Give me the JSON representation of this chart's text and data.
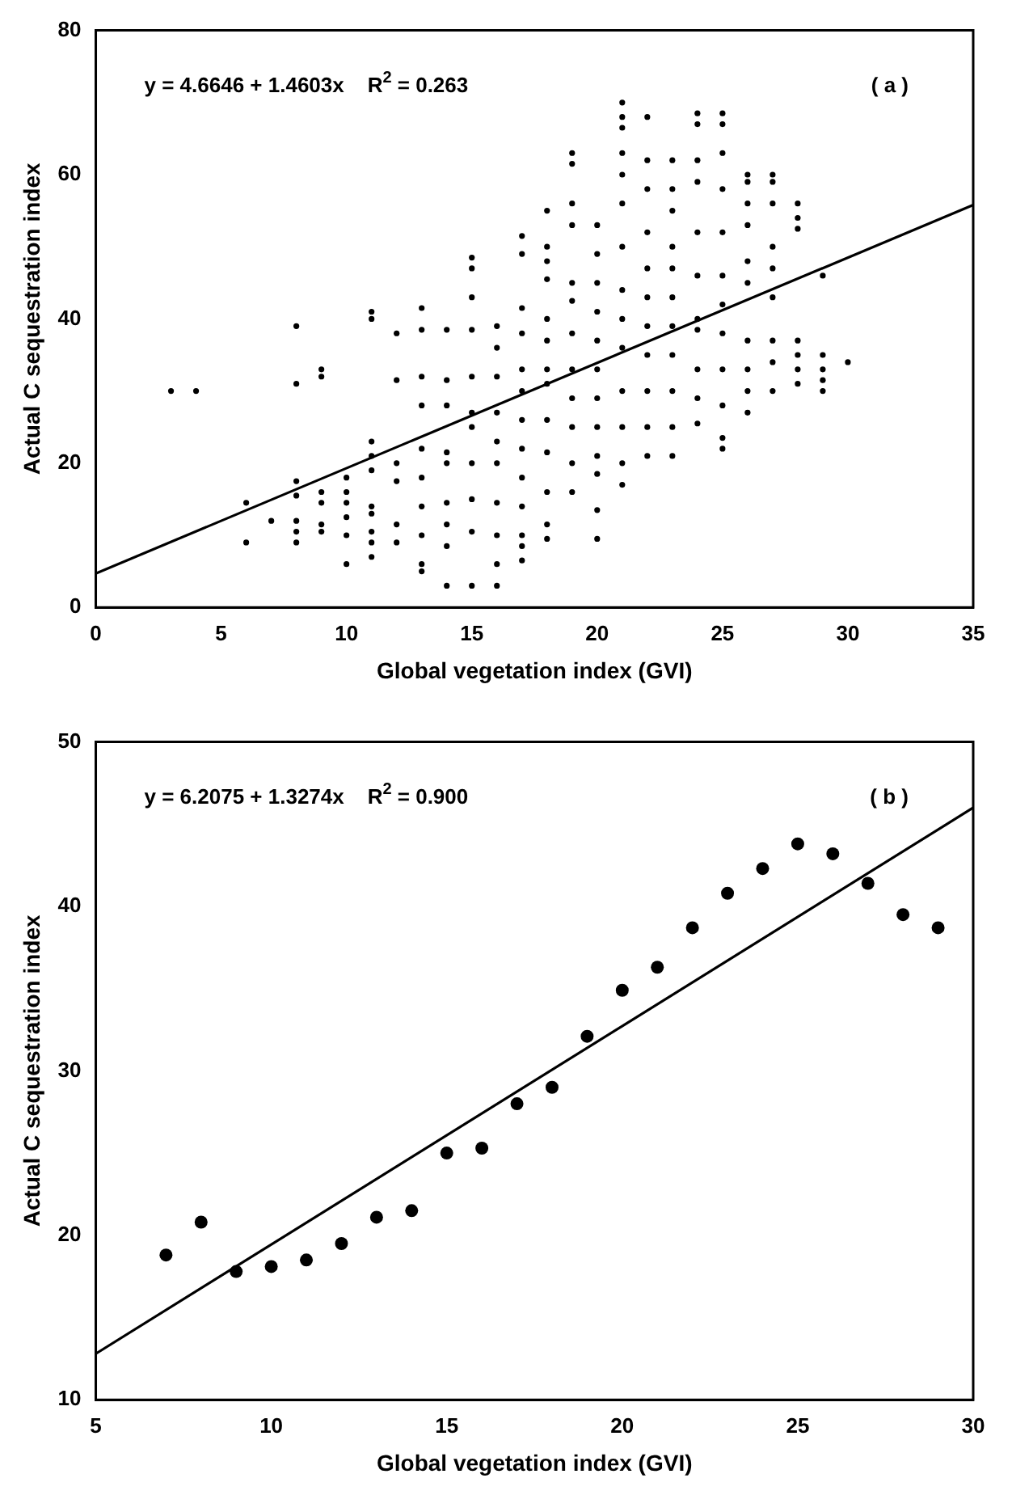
{
  "chart_data": [
    {
      "type": "scatter",
      "xlabel": "Global vegetation index (GVI)",
      "ylabel": "Actual C sequestration index",
      "annotations": [
        "y = 4.6646 + 1.4603x    R$^{2}$ = 0.263",
        "( a )"
      ],
      "xlim": [
        0,
        35
      ],
      "xticks": [
        0,
        5,
        10,
        15,
        20,
        25,
        30,
        35
      ],
      "ylim": [
        0,
        80
      ],
      "yticks": [
        0,
        20,
        40,
        60,
        80
      ],
      "grid": false,
      "legend": false,
      "marker": "circle",
      "series": [
        {
          "color": "#000000",
          "x": [
            3,
            4,
            6,
            6,
            7,
            8,
            8,
            8,
            8,
            8,
            8,
            8,
            9,
            9,
            9,
            9,
            9,
            9,
            10,
            10,
            10,
            10,
            10,
            10,
            11,
            11,
            11,
            11,
            11,
            11,
            11,
            11,
            11,
            11,
            12,
            12,
            12,
            12,
            12,
            12,
            13,
            13,
            13,
            13,
            13,
            13,
            13,
            13,
            13,
            13,
            14,
            14,
            14,
            14,
            14,
            14,
            14,
            14,
            14,
            15,
            15,
            15,
            15,
            15,
            15,
            15,
            15,
            15,
            15,
            15,
            16,
            16,
            16,
            16,
            16,
            16,
            16,
            16,
            16,
            16,
            17,
            17,
            17,
            17,
            17,
            17,
            17,
            17,
            17,
            17,
            17,
            17,
            17,
            18,
            18,
            18,
            18,
            18,
            18,
            18,
            18,
            18,
            18,
            18,
            18,
            18,
            19,
            19,
            19,
            19,
            19,
            19,
            19,
            19,
            19,
            19,
            19,
            19,
            20,
            20,
            20,
            20,
            20,
            20,
            20,
            20,
            20,
            20,
            20,
            20,
            21,
            21,
            21,
            21,
            21,
            21,
            21,
            21,
            21,
            21,
            21,
            21,
            21,
            21,
            22,
            22,
            22,
            22,
            22,
            22,
            22,
            22,
            22,
            22,
            22,
            23,
            23,
            23,
            23,
            23,
            23,
            23,
            23,
            23,
            23,
            23,
            24,
            24,
            24,
            24,
            24,
            24,
            24,
            24,
            24,
            24,
            24,
            25,
            25,
            25,
            25,
            25,
            25,
            25,
            25,
            25,
            25,
            25,
            25,
            26,
            26,
            26,
            26,
            26,
            26,
            26,
            26,
            26,
            26,
            27,
            27,
            27,
            27,
            27,
            27,
            27,
            27,
            27,
            28,
            28,
            28,
            28,
            28,
            28,
            28,
            29,
            29,
            29,
            29,
            29,
            30
          ],
          "values": [
            30,
            30,
            14.5,
            9,
            12,
            39,
            31,
            17.5,
            15.5,
            12,
            10.5,
            9,
            33,
            32,
            16,
            14.5,
            11.5,
            10.5,
            18,
            16,
            14.5,
            12.5,
            10,
            6,
            41,
            40,
            23,
            21,
            19,
            14,
            13,
            10.5,
            9,
            7,
            38,
            31.5,
            20,
            17.5,
            11.5,
            9,
            41.5,
            38.5,
            32,
            28,
            22,
            18,
            14,
            10,
            6,
            5,
            38.5,
            31.5,
            28,
            21.5,
            20,
            14.5,
            11.5,
            8.5,
            3,
            48.5,
            47,
            43,
            38.5,
            32,
            27,
            25,
            20,
            15,
            10.5,
            3,
            39,
            36,
            32,
            27,
            23,
            20,
            14.5,
            10,
            6,
            3,
            51.5,
            49,
            41.5,
            38,
            33,
            30,
            26,
            22,
            18,
            14,
            10,
            8.5,
            6.5,
            55,
            50,
            48,
            45.5,
            40,
            37,
            33,
            31,
            26,
            21.5,
            16,
            11.5,
            9.5,
            63,
            61.5,
            56,
            53,
            45,
            42.5,
            38,
            33,
            29,
            25,
            20,
            16,
            53,
            49,
            45,
            41,
            37,
            33,
            29,
            25,
            21,
            18.5,
            13.5,
            9.5,
            70,
            68,
            66.5,
            63,
            60,
            56,
            50,
            44,
            40,
            36,
            30,
            25,
            20,
            17,
            68,
            62,
            58,
            52,
            47,
            43,
            39,
            35,
            30,
            25,
            21,
            62,
            58,
            55,
            50,
            47,
            43,
            39,
            35,
            30,
            25,
            21,
            68.5,
            67,
            62,
            59,
            52,
            46,
            40,
            38.5,
            33,
            29,
            25.5,
            68.5,
            67,
            63,
            58,
            52,
            46,
            42,
            38,
            33,
            28,
            23.5,
            22,
            60,
            59,
            56,
            53,
            48,
            45,
            37,
            33,
            30,
            27,
            60,
            59,
            56,
            50,
            47,
            43,
            37,
            34,
            30,
            56,
            54,
            52.5,
            37,
            35,
            33,
            31,
            46,
            35,
            33,
            31.5,
            30,
            34
          ]
        },
        {
          "type": "line",
          "color": "#000000",
          "marker": "none",
          "x": [
            0,
            35
          ],
          "values": [
            4.7,
            55.8
          ]
        }
      ]
    },
    {
      "type": "scatter",
      "xlabel": "Global vegetation index (GVI)",
      "ylabel": "Actual C sequestration index",
      "annotations": [
        "y = 6.2075 + 1.3274x    R$^{2}$ = 0.900",
        "( b )"
      ],
      "xlim": [
        5,
        30
      ],
      "xticks": [
        5,
        10,
        15,
        20,
        25,
        30
      ],
      "ylim": [
        10,
        50
      ],
      "yticks": [
        10,
        20,
        30,
        40,
        50
      ],
      "grid": false,
      "legend": false,
      "marker": "circle",
      "series": [
        {
          "color": "#000000",
          "x": [
            7,
            8,
            9,
            10,
            11,
            12,
            13,
            14,
            15,
            16,
            17,
            18,
            19,
            20,
            21,
            22,
            23,
            24,
            25,
            26,
            27,
            28,
            29
          ],
          "values": [
            18.8,
            20.8,
            17.8,
            18.1,
            18.5,
            19.5,
            21.1,
            21.5,
            25.0,
            25.3,
            28.0,
            29.0,
            32.1,
            34.9,
            36.3,
            38.7,
            40.8,
            42.3,
            43.8,
            43.2,
            41.4,
            39.5,
            38.7
          ]
        },
        {
          "type": "line",
          "color": "#000000",
          "marker": "none",
          "x": [
            5,
            30
          ],
          "values": [
            12.8,
            46.0
          ]
        }
      ]
    }
  ]
}
